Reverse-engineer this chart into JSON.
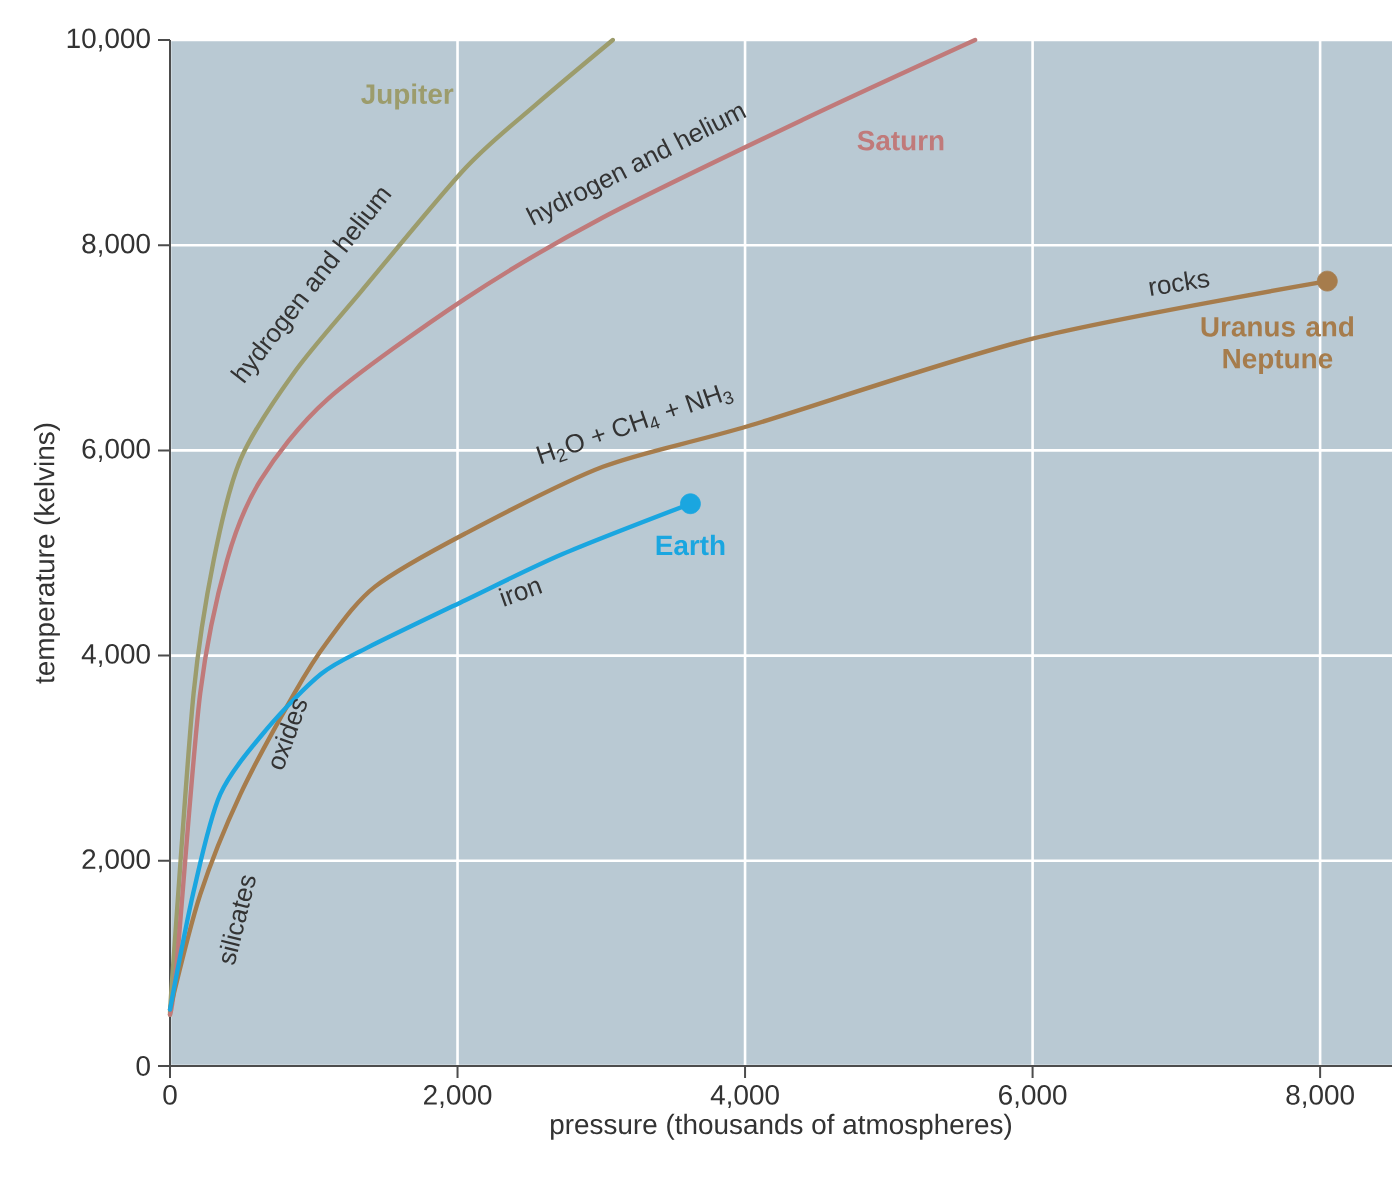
{
  "chart_data": {
    "type": "line",
    "xlabel": "pressure (thousands of atmospheres)",
    "ylabel": "temperature (kelvins)",
    "xlim": [
      0,
      8500
    ],
    "ylim": [
      0,
      10000
    ],
    "xticks": [
      0,
      {
        "value": 2000,
        "label": "2,000"
      },
      {
        "value": 4000,
        "label": "4,000"
      },
      {
        "value": 6000,
        "label": "6,000"
      },
      {
        "value": 8000,
        "label": "8,000"
      }
    ],
    "yticks": [
      0,
      {
        "value": 2000,
        "label": "2,000"
      },
      {
        "value": 4000,
        "label": "4,000"
      },
      {
        "value": 6000,
        "label": "6,000"
      },
      {
        "value": 8000,
        "label": "8,000"
      },
      {
        "value": 10000,
        "label": "10,000"
      }
    ],
    "grid": true,
    "legend": false,
    "line_style": "solid",
    "series": [
      {
        "name": "Jupiter",
        "color": "#9c9c6c",
        "x": [
          0,
          23,
          164,
          304,
          490,
          864,
          1330,
          2054,
          2545,
          3080
        ],
        "values": [
          500,
          1000,
          3630,
          4930,
          5910,
          6760,
          7550,
          8750,
          9370,
          10000
        ]
      },
      {
        "name": "Saturn",
        "color": "#c07a7a",
        "x": [
          0,
          47,
          210,
          397,
          630,
          1097,
          2054,
          3011,
          4412,
          5600
        ],
        "values": [
          500,
          1000,
          3630,
          4930,
          5710,
          6500,
          7480,
          8270,
          9230,
          10000
        ]
      },
      {
        "name": "Uranus and Neptune",
        "color": "#a67c4c",
        "x": [
          0,
          210,
          490,
          864,
          1097,
          1424,
          2054,
          3011,
          4029,
          6000,
          8050
        ],
        "values": [
          550,
          1670,
          2650,
          3630,
          4140,
          4670,
          5190,
          5840,
          6240,
          7090,
          7650
        ]
      },
      {
        "name": "Earth",
        "color": "#1aa6e0",
        "x": [
          0,
          164,
          350,
          677,
          1050,
          1377,
          2054,
          2731,
          3620
        ],
        "values": [
          550,
          1700,
          2650,
          3290,
          3820,
          4080,
          4540,
          4990,
          5480
        ]
      },
      {
        "type": "scatter",
        "marker": "circle",
        "x": [
          3620,
          8050
        ],
        "values": [
          5480,
          7650
        ],
        "colors": [
          "#1aa6e0",
          "#a67c4c"
        ]
      }
    ],
    "annotations": [
      "hydrogen and helium",
      "hydrogen and helium",
      "H$_{2}$O + CH$_{4}$ + NH$_{3}$",
      "rocks",
      "iron",
      "oxides",
      "silicates"
    ]
  }
}
